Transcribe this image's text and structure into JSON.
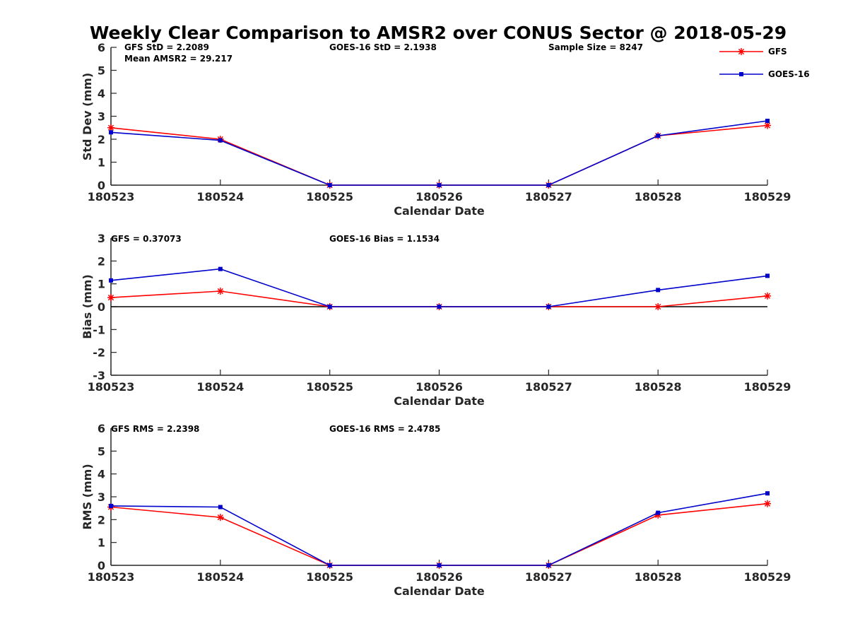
{
  "chart_data": [
    {
      "type": "line",
      "title": "Weekly Clear Comparison to AMSR2 over CONUS Sector @ 2018-05-29",
      "xlabel": "Calendar Date",
      "ylabel": "Std Dev (mm)",
      "ylim": [
        0,
        6
      ],
      "yticks": [
        "0",
        "1",
        "2",
        "3",
        "4",
        "5",
        "6"
      ],
      "categories": [
        "180523",
        "180524",
        "180525",
        "180526",
        "180527",
        "180528",
        "180529"
      ],
      "series": [
        {
          "name": "GFS",
          "color": "#ff0000",
          "marker": "asterisk",
          "values": [
            2.5,
            2.0,
            0,
            0,
            0,
            2.15,
            2.6
          ]
        },
        {
          "name": "GOES-16",
          "color": "#0000cc",
          "marker": "square",
          "values": [
            2.3,
            1.95,
            0,
            0,
            0,
            2.15,
            2.8
          ]
        }
      ],
      "annotations": [
        "GFS StD = 2.2089",
        "Mean AMSR2 = 29.217",
        "GOES-16 StD = 2.1938",
        "Sample Size = 8247"
      ],
      "legend_position": "top-right",
      "grid": false
    },
    {
      "type": "line",
      "title": "",
      "xlabel": "Calendar Date",
      "ylabel": "Bias (mm)",
      "ylim": [
        -3,
        3
      ],
      "yticks": [
        "-3",
        "-2",
        "-1",
        "0",
        "1",
        "2",
        "3"
      ],
      "categories": [
        "180523",
        "180524",
        "180525",
        "180526",
        "180527",
        "180528",
        "180529"
      ],
      "series": [
        {
          "name": "GFS",
          "color": "#ff0000",
          "marker": "asterisk",
          "values": [
            0.4,
            0.68,
            0,
            0,
            0,
            0,
            0.47
          ]
        },
        {
          "name": "GOES-16",
          "color": "#0000cc",
          "marker": "square",
          "values": [
            1.15,
            1.65,
            0,
            0,
            0,
            0.73,
            1.35
          ]
        }
      ],
      "zero_line": true,
      "annotations": [
        "GFS = 0.37073",
        "GOES-16 Bias  = 1.1534"
      ],
      "grid": false
    },
    {
      "type": "line",
      "title": "",
      "xlabel": "Calendar Date",
      "ylabel": "RMS (mm)",
      "ylim": [
        0,
        6
      ],
      "yticks": [
        "0",
        "1",
        "2",
        "3",
        "4",
        "5",
        "6"
      ],
      "categories": [
        "180523",
        "180524",
        "180525",
        "180526",
        "180527",
        "180528",
        "180529"
      ],
      "series": [
        {
          "name": "GFS",
          "color": "#ff0000",
          "marker": "asterisk",
          "values": [
            2.55,
            2.1,
            0,
            0,
            0,
            2.2,
            2.7
          ]
        },
        {
          "name": "GOES-16",
          "color": "#0000cc",
          "marker": "square",
          "values": [
            2.6,
            2.55,
            0,
            0,
            0,
            2.3,
            3.15
          ]
        }
      ],
      "annotations": [
        "GFS RMS = 2.2398",
        "GOES-16 RMS = 2.4785"
      ],
      "grid": false
    }
  ]
}
